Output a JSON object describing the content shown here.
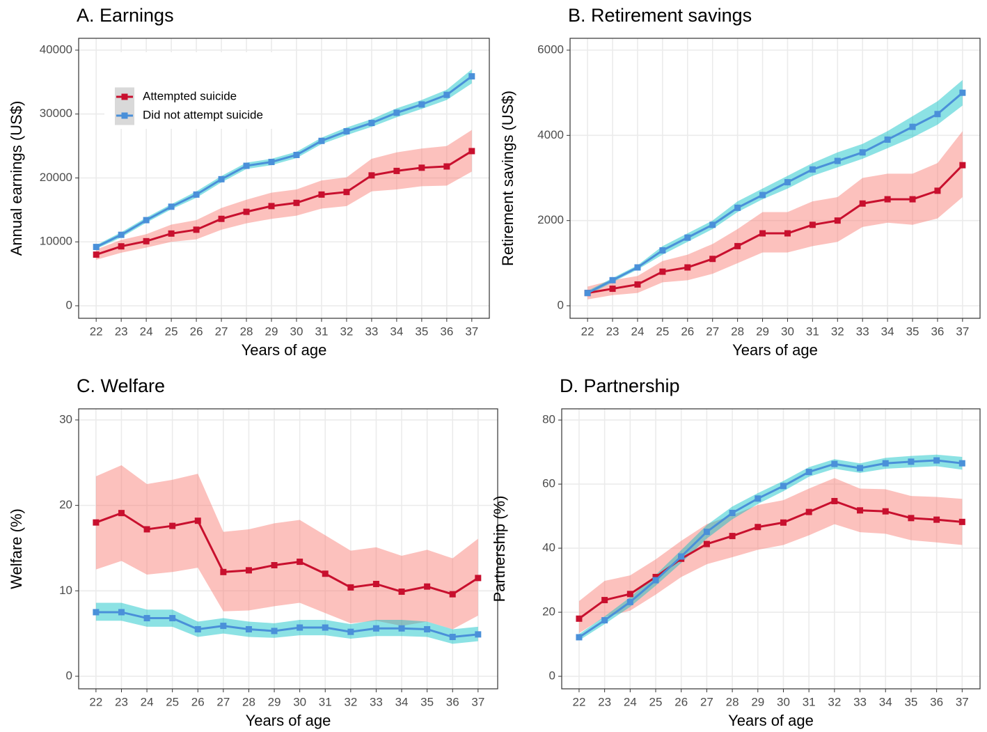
{
  "chart_data": [
    {
      "type": "line",
      "title": "A. Earnings",
      "x_label": "Years of age",
      "y_label": "Annual earnings (US$)",
      "x": [
        22,
        23,
        24,
        25,
        26,
        27,
        28,
        29,
        30,
        31,
        32,
        33,
        34,
        35,
        36,
        37
      ],
      "xlim": [
        21.3,
        37.7
      ],
      "xticks": [
        22,
        23,
        24,
        25,
        26,
        27,
        28,
        29,
        30,
        31,
        32,
        33,
        34,
        35,
        36,
        37
      ],
      "ylim": [
        -1960,
        41850
      ],
      "yticks": [
        0,
        10000,
        20000,
        30000,
        40000
      ],
      "grid": true,
      "legend": "upper left",
      "series": [
        {
          "name": "Attempted suicide",
          "color": "#c8102e",
          "band_color": "#f8766d",
          "values": [
            8000,
            9300,
            10100,
            11300,
            11900,
            13600,
            14700,
            15600,
            16100,
            17400,
            17800,
            20400,
            21100,
            21600,
            21800,
            24200
          ],
          "lower": [
            7200,
            8300,
            9100,
            10000,
            10400,
            11900,
            12900,
            13600,
            14100,
            15200,
            15600,
            17900,
            18200,
            18700,
            18800,
            21000
          ],
          "upper": [
            8800,
            10300,
            11200,
            12700,
            13400,
            15300,
            16600,
            17700,
            18200,
            19600,
            20100,
            23000,
            24000,
            24600,
            25000,
            27500
          ]
        },
        {
          "name": "Did not attempt suicide",
          "color": "#4a90d9",
          "band_color": "#00bfc4",
          "values": [
            9200,
            11100,
            13400,
            15500,
            17400,
            19800,
            21900,
            22500,
            23600,
            25800,
            27300,
            28600,
            30200,
            31500,
            33000,
            35900
          ],
          "lower": [
            8900,
            10700,
            13000,
            15100,
            16900,
            19300,
            21400,
            22000,
            23100,
            25300,
            26700,
            28000,
            29500,
            30800,
            32200,
            34800
          ],
          "upper": [
            9500,
            11500,
            13800,
            15900,
            17900,
            20300,
            22400,
            23000,
            24100,
            26300,
            27900,
            29200,
            30900,
            32200,
            33800,
            37000
          ]
        }
      ]
    },
    {
      "type": "line",
      "title": "B. Retirement savings",
      "x_label": "Years of age",
      "y_label": "Retirement savings (US$)",
      "x": [
        22,
        23,
        24,
        25,
        26,
        27,
        28,
        29,
        30,
        31,
        32,
        33,
        34,
        35,
        36,
        37
      ],
      "xlim": [
        21.3,
        37.7
      ],
      "xticks": [
        22,
        23,
        24,
        25,
        26,
        27,
        28,
        29,
        30,
        31,
        32,
        33,
        34,
        35,
        36,
        37
      ],
      "ylim": [
        -294,
        6278
      ],
      "yticks": [
        0,
        2000,
        4000,
        6000
      ],
      "grid": true,
      "series": [
        {
          "name": "Attempted suicide",
          "color": "#c8102e",
          "band_color": "#f8766d",
          "values": [
            300,
            400,
            500,
            800,
            900,
            1100,
            1400,
            1700,
            1700,
            1900,
            2000,
            2400,
            2500,
            2500,
            2700,
            3300
          ],
          "lower": [
            150,
            250,
            300,
            550,
            600,
            750,
            1000,
            1250,
            1250,
            1400,
            1500,
            1850,
            1950,
            1900,
            2050,
            2550
          ],
          "upper": [
            450,
            600,
            700,
            1050,
            1200,
            1450,
            1800,
            2200,
            2200,
            2450,
            2550,
            3000,
            3100,
            3100,
            3350,
            4100
          ]
        },
        {
          "name": "Did not attempt suicide",
          "color": "#4a90d9",
          "band_color": "#00bfc4",
          "values": [
            300,
            600,
            900,
            1300,
            1600,
            1900,
            2300,
            2600,
            2900,
            3200,
            3400,
            3600,
            3900,
            4200,
            4500,
            5000
          ],
          "lower": [
            250,
            550,
            850,
            1200,
            1500,
            1800,
            2200,
            2500,
            2750,
            3050,
            3250,
            3450,
            3700,
            3950,
            4250,
            4700
          ],
          "upper": [
            350,
            650,
            950,
            1400,
            1700,
            2000,
            2450,
            2750,
            3050,
            3350,
            3600,
            3800,
            4100,
            4450,
            4800,
            5300
          ]
        }
      ]
    },
    {
      "type": "line",
      "title": "C. Welfare",
      "x_label": "Years of age",
      "y_label": "Welfare (%)",
      "x": [
        22,
        23,
        24,
        25,
        26,
        27,
        28,
        29,
        30,
        31,
        32,
        33,
        34,
        35,
        36,
        37
      ],
      "xlim": [
        21.32,
        37.77
      ],
      "xticks": [
        22,
        23,
        24,
        25,
        26,
        27,
        28,
        29,
        30,
        31,
        32,
        33,
        34,
        35,
        36,
        37
      ],
      "ylim": [
        -1.47,
        31.3
      ],
      "yticks": [
        0,
        10,
        20,
        30
      ],
      "grid": true,
      "series": [
        {
          "name": "Attempted suicide",
          "color": "#c8102e",
          "band_color": "#f8766d",
          "values": [
            18.0,
            19.1,
            17.2,
            17.6,
            18.2,
            12.2,
            12.4,
            13.0,
            13.4,
            12.0,
            10.4,
            10.8,
            9.9,
            10.5,
            9.6,
            11.5
          ],
          "lower": [
            12.5,
            13.5,
            11.9,
            12.2,
            12.7,
            7.6,
            7.7,
            8.2,
            8.6,
            7.4,
            6.2,
            6.5,
            5.9,
            6.4,
            5.5,
            7.1
          ],
          "upper": [
            23.4,
            24.7,
            22.5,
            23.0,
            23.7,
            16.9,
            17.2,
            17.9,
            18.3,
            16.5,
            14.7,
            15.1,
            14.1,
            14.8,
            13.8,
            16.1
          ]
        },
        {
          "name": "Did not attempt suicide",
          "color": "#4a90d9",
          "band_color": "#00bfc4",
          "values": [
            7.5,
            7.5,
            6.8,
            6.8,
            5.5,
            5.9,
            5.5,
            5.3,
            5.7,
            5.7,
            5.2,
            5.6,
            5.6,
            5.5,
            4.6,
            4.9
          ],
          "lower": [
            6.5,
            6.5,
            5.8,
            5.8,
            4.6,
            5.0,
            4.6,
            4.5,
            4.8,
            4.8,
            4.4,
            4.7,
            4.7,
            4.6,
            3.8,
            4.1
          ],
          "upper": [
            8.6,
            8.6,
            7.8,
            7.8,
            6.4,
            6.8,
            6.4,
            6.2,
            6.6,
            6.6,
            6.1,
            6.6,
            6.6,
            6.4,
            5.5,
            5.8
          ]
        }
      ]
    },
    {
      "type": "line",
      "title": "D. Partnership",
      "x_label": "Years of age",
      "y_label": "Partnership (%)",
      "x": [
        22,
        23,
        24,
        25,
        26,
        27,
        28,
        29,
        30,
        31,
        32,
        33,
        34,
        35,
        36,
        37
      ],
      "xlim": [
        21.32,
        37.7
      ],
      "xticks": [
        22,
        23,
        24,
        25,
        26,
        27,
        28,
        29,
        30,
        31,
        32,
        33,
        34,
        35,
        36,
        37
      ],
      "ylim": [
        -3.9,
        83.5
      ],
      "yticks": [
        0,
        20,
        40,
        60,
        80
      ],
      "grid": true,
      "series": [
        {
          "name": "Attempted suicide",
          "color": "#c8102e",
          "band_color": "#f8766d",
          "values": [
            18.0,
            23.8,
            25.7,
            31.0,
            36.7,
            41.3,
            43.8,
            46.6,
            48.0,
            51.3,
            54.7,
            51.8,
            51.5,
            49.4,
            48.9,
            48.2
          ],
          "lower": [
            13.5,
            18.5,
            20.5,
            25.5,
            31.0,
            35.0,
            37.2,
            39.5,
            41.0,
            44.0,
            47.5,
            45.0,
            44.5,
            42.5,
            41.8,
            41.0
          ],
          "upper": [
            23.5,
            29.8,
            31.5,
            36.5,
            42.3,
            47.5,
            50.3,
            53.5,
            55.0,
            58.6,
            61.9,
            58.6,
            58.4,
            56.3,
            56.0,
            55.4
          ]
        },
        {
          "name": "Did not attempt suicide",
          "color": "#4a90d9",
          "band_color": "#00bfc4",
          "values": [
            12.2,
            17.5,
            23.2,
            30.0,
            37.4,
            45.1,
            51.0,
            55.5,
            59.4,
            63.8,
            66.3,
            65.0,
            66.5,
            67.0,
            67.4,
            66.5
          ],
          "lower": [
            11.2,
            16.3,
            21.7,
            28.3,
            35.4,
            43.0,
            49.0,
            53.8,
            57.8,
            62.3,
            64.8,
            63.5,
            64.8,
            65.2,
            65.6,
            64.5
          ],
          "upper": [
            13.2,
            18.7,
            24.7,
            31.7,
            39.4,
            47.2,
            53.0,
            57.2,
            61.0,
            65.3,
            67.8,
            66.5,
            68.2,
            68.8,
            69.2,
            68.5
          ]
        }
      ]
    }
  ]
}
